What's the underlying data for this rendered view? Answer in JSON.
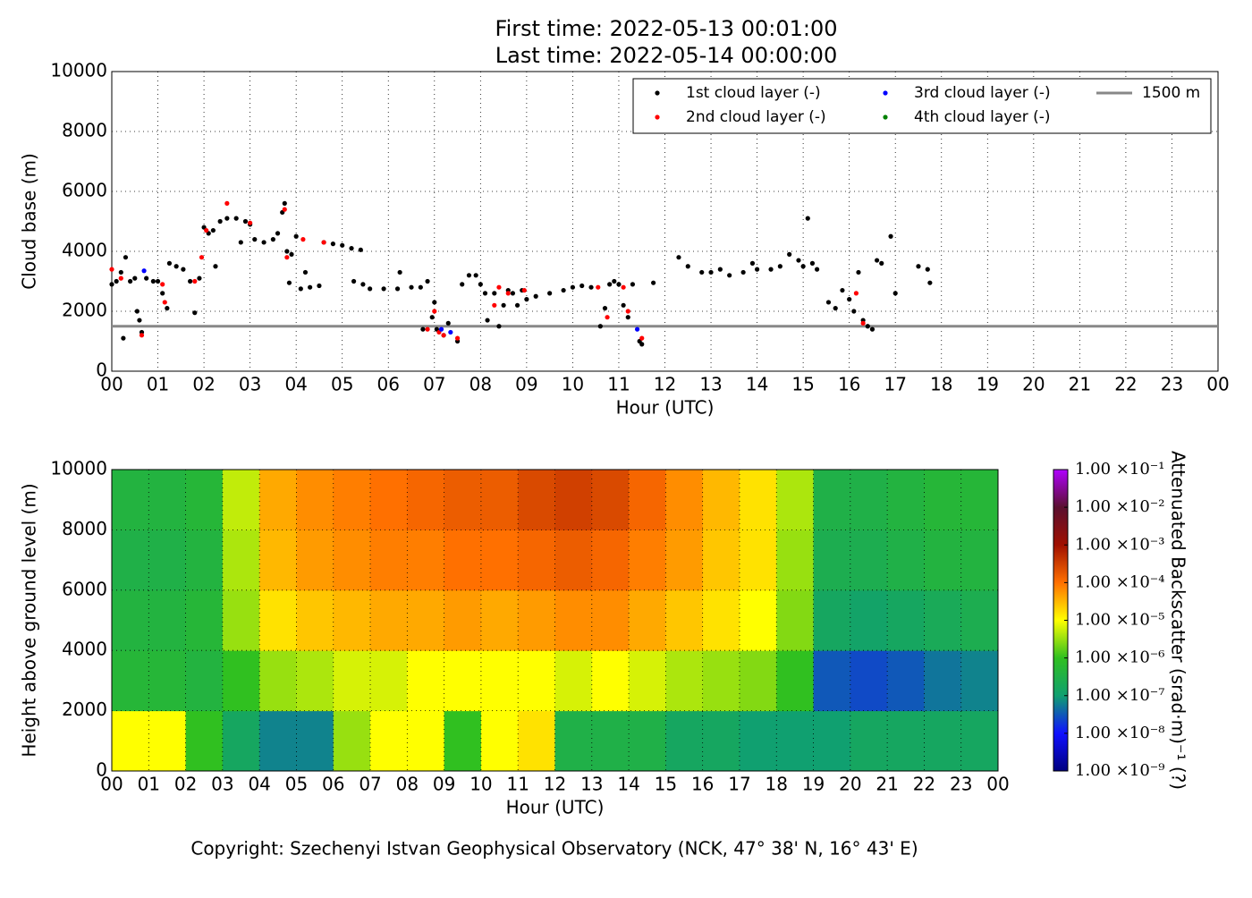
{
  "chart_data": [
    {
      "type": "scatter",
      "title": "First time: 2022-05-13 00:01:00",
      "subtitle": "Last time: 2022-05-14 00:00:00",
      "xlabel": "Hour (UTC)",
      "ylabel": "Cloud base (m)",
      "xlim": [
        0,
        24
      ],
      "ylim": [
        0,
        10000
      ],
      "xticks": [
        {
          "value": 0,
          "label": "00"
        },
        {
          "value": 1,
          "label": "01"
        },
        {
          "value": 2,
          "label": "02"
        },
        {
          "value": 3,
          "label": "03"
        },
        {
          "value": 4,
          "label": "04"
        },
        {
          "value": 5,
          "label": "05"
        },
        {
          "value": 6,
          "label": "06"
        },
        {
          "value": 7,
          "label": "07"
        },
        {
          "value": 8,
          "label": "08"
        },
        {
          "value": 9,
          "label": "09"
        },
        {
          "value": 10,
          "label": "10"
        },
        {
          "value": 11,
          "label": "11"
        },
        {
          "value": 12,
          "label": "12"
        },
        {
          "value": 13,
          "label": "13"
        },
        {
          "value": 14,
          "label": "14"
        },
        {
          "value": 15,
          "label": "15"
        },
        {
          "value": 16,
          "label": "16"
        },
        {
          "value": 17,
          "label": "17"
        },
        {
          "value": 18,
          "label": "18"
        },
        {
          "value": 19,
          "label": "19"
        },
        {
          "value": 20,
          "label": "20"
        },
        {
          "value": 21,
          "label": "21"
        },
        {
          "value": 22,
          "label": "22"
        },
        {
          "value": 23,
          "label": "23"
        },
        {
          "value": 24,
          "label": "00"
        }
      ],
      "yticks": [
        0,
        2000,
        4000,
        6000,
        8000,
        10000
      ],
      "grid": true,
      "series": [
        {
          "name": "1st cloud layer (-)",
          "color": "#000000",
          "x": [
            0.0,
            0.1,
            0.2,
            0.25,
            0.3,
            0.4,
            0.5,
            0.55,
            0.6,
            0.65,
            0.75,
            0.9,
            1.0,
            1.1,
            1.2,
            1.25,
            1.4,
            1.55,
            1.7,
            1.8,
            1.9,
            2.0,
            2.1,
            2.2,
            2.25,
            2.35,
            2.5,
            2.7,
            2.8,
            2.9,
            3.0,
            3.1,
            3.3,
            3.5,
            3.6,
            3.7,
            3.75,
            3.8,
            3.85,
            3.9,
            4.0,
            4.1,
            4.2,
            4.3,
            4.5,
            4.6,
            4.8,
            5.0,
            5.2,
            5.25,
            5.4,
            5.45,
            5.6,
            5.9,
            6.2,
            6.25,
            6.5,
            6.7,
            6.75,
            6.85,
            6.95,
            7.0,
            7.05,
            7.2,
            7.3,
            7.5,
            7.6,
            7.75,
            7.9,
            8.0,
            8.1,
            8.15,
            8.3,
            8.4,
            8.5,
            8.6,
            8.7,
            8.8,
            8.9,
            9.0,
            9.2,
            9.5,
            9.8,
            10.0,
            10.2,
            10.4,
            10.6,
            10.7,
            10.8,
            10.9,
            11.0,
            11.1,
            11.2,
            11.3,
            11.45,
            11.5,
            11.75,
            12.3,
            12.5,
            12.8,
            13.0,
            13.2,
            13.4,
            13.7,
            13.9,
            14.0,
            14.3,
            14.5,
            14.7,
            14.9,
            15.0,
            15.1,
            15.2,
            15.3,
            15.55,
            15.7,
            15.85,
            16.0,
            16.1,
            16.2,
            16.3,
            16.4,
            16.5,
            16.6,
            16.7,
            16.9,
            17.0,
            17.5,
            17.7,
            17.75
          ],
          "values": [
            2900,
            3000,
            3300,
            1100,
            3800,
            3000,
            3100,
            2000,
            1700,
            1300,
            3100,
            3000,
            3000,
            2600,
            2100,
            3600,
            3500,
            3400,
            3000,
            1950,
            3100,
            4800,
            4600,
            4700,
            3500,
            5000,
            5100,
            5100,
            4300,
            5000,
            4900,
            4400,
            4300,
            4400,
            4600,
            5300,
            5600,
            4000,
            2950,
            3900,
            4500,
            2750,
            3300,
            2800,
            2850,
            4300,
            4250,
            4200,
            4100,
            3000,
            4050,
            2900,
            2750,
            2750,
            2750,
            3300,
            2800,
            2800,
            1400,
            3000,
            1800,
            2300,
            1400,
            1200,
            1600,
            1000,
            2900,
            3200,
            3200,
            2900,
            2600,
            1700,
            2600,
            1500,
            2200,
            2700,
            2600,
            2200,
            2700,
            2400,
            2500,
            2600,
            2700,
            2800,
            2850,
            2800,
            1500,
            2100,
            2900,
            3000,
            2900,
            2200,
            1800,
            2900,
            1000,
            900,
            2950,
            3800,
            3500,
            3300,
            3300,
            3400,
            3200,
            3300,
            3600,
            3400,
            3400,
            3500,
            3900,
            3700,
            3500,
            5100,
            3600,
            3400,
            2300,
            2100,
            2700,
            2400,
            2000,
            3300,
            1700,
            1500,
            1400,
            3700,
            3600,
            4500,
            2600,
            3500,
            3400,
            2950
          ]
        },
        {
          "name": "2nd cloud layer (-)",
          "color": "#ff0000",
          "x": [
            0.0,
            0.2,
            0.65,
            1.1,
            1.15,
            1.8,
            1.95,
            2.05,
            2.5,
            3.0,
            3.75,
            3.8,
            4.15,
            4.6,
            6.85,
            7.0,
            7.1,
            7.2,
            7.5,
            8.3,
            8.4,
            8.6,
            8.95,
            10.55,
            10.75,
            11.1,
            11.2,
            11.5,
            16.15,
            16.3
          ],
          "values": [
            3400,
            3100,
            1200,
            2900,
            2300,
            3000,
            3800,
            4700,
            5600,
            4950,
            5400,
            3800,
            4400,
            4300,
            1400,
            2000,
            1300,
            1200,
            1100,
            2200,
            2800,
            2600,
            2700,
            2800,
            1800,
            2800,
            2000,
            1100,
            2600,
            1600
          ]
        },
        {
          "name": "3rd cloud layer (-)",
          "color": "#0000ff",
          "x": [
            0.7,
            7.15,
            7.35,
            11.4
          ],
          "values": [
            3350,
            1400,
            1300,
            1400
          ]
        },
        {
          "name": "4th cloud layer (-)",
          "color": "#008000",
          "x": [],
          "values": []
        }
      ],
      "reference_line": {
        "name": "1500 m",
        "value": 1500,
        "color": "#888888"
      }
    },
    {
      "type": "heatmap",
      "xlabel": "Hour (UTC)",
      "ylabel": "Height above ground level (m)",
      "xlim": [
        0,
        24
      ],
      "ylim": [
        0,
        10000
      ],
      "xticks": [
        {
          "value": 0,
          "label": "00"
        },
        {
          "value": 1,
          "label": "01"
        },
        {
          "value": 2,
          "label": "02"
        },
        {
          "value": 3,
          "label": "03"
        },
        {
          "value": 4,
          "label": "04"
        },
        {
          "value": 5,
          "label": "05"
        },
        {
          "value": 6,
          "label": "06"
        },
        {
          "value": 7,
          "label": "07"
        },
        {
          "value": 8,
          "label": "08"
        },
        {
          "value": 9,
          "label": "09"
        },
        {
          "value": 10,
          "label": "10"
        },
        {
          "value": 11,
          "label": "11"
        },
        {
          "value": 12,
          "label": "12"
        },
        {
          "value": 13,
          "label": "13"
        },
        {
          "value": 14,
          "label": "14"
        },
        {
          "value": 15,
          "label": "15"
        },
        {
          "value": 16,
          "label": "16"
        },
        {
          "value": 17,
          "label": "17"
        },
        {
          "value": 18,
          "label": "18"
        },
        {
          "value": 19,
          "label": "19"
        },
        {
          "value": 20,
          "label": "20"
        },
        {
          "value": 21,
          "label": "21"
        },
        {
          "value": 22,
          "label": "22"
        },
        {
          "value": 23,
          "label": "23"
        },
        {
          "value": 24,
          "label": "00"
        }
      ],
      "yticks": [
        0,
        2000,
        4000,
        6000,
        8000,
        10000
      ],
      "grid": true,
      "x_bins": [
        0,
        1,
        2,
        3,
        4,
        5,
        6,
        7,
        8,
        9,
        10,
        11,
        12,
        13,
        14,
        15,
        16,
        17,
        18,
        19,
        20,
        21,
        22,
        23,
        24
      ],
      "y_bins": [
        0,
        2000,
        4000,
        6000,
        8000,
        10000
      ],
      "z": [
        [
          -5,
          -5,
          -6,
          -6.8,
          -7.2,
          -7.2,
          -5.5,
          -5,
          -5,
          -6,
          -5,
          -4.8,
          -6.5,
          -6.5,
          -6.5,
          -6.8,
          -6.8,
          -7,
          -7,
          -7,
          -6.8,
          -6.8,
          -6.8,
          -6.8
        ],
        [
          -6.3,
          -6.3,
          -6.4,
          -6,
          -5.5,
          -5.4,
          -5.2,
          -5.2,
          -5,
          -5,
          -5,
          -5,
          -5.2,
          -5,
          -5.2,
          -5.4,
          -5.5,
          -5.6,
          -6,
          -7.5,
          -7.6,
          -7.5,
          -7.3,
          -7.2
        ],
        [
          -6.4,
          -6.4,
          -6.3,
          -5.5,
          -4.8,
          -4.6,
          -4.5,
          -4.4,
          -4.4,
          -4.3,
          -4.4,
          -4.3,
          -4.2,
          -4.2,
          -4.4,
          -4.6,
          -4.8,
          -5,
          -5.6,
          -6.8,
          -6.9,
          -6.8,
          -6.7,
          -6.6
        ],
        [
          -6.5,
          -6.5,
          -6.4,
          -5.4,
          -4.5,
          -4.3,
          -4.2,
          -4.1,
          -4.1,
          -4,
          -4,
          -3.9,
          -3.8,
          -3.9,
          -4.1,
          -4.3,
          -4.6,
          -4.8,
          -5.5,
          -6.6,
          -6.6,
          -6.5,
          -6.4,
          -6.4
        ],
        [
          -6.4,
          -6.4,
          -6.3,
          -5.3,
          -4.4,
          -4.2,
          -4.1,
          -4,
          -3.9,
          -3.8,
          -3.8,
          -3.6,
          -3.5,
          -3.6,
          -3.9,
          -4.2,
          -4.5,
          -4.8,
          -5.4,
          -6.5,
          -6.5,
          -6.4,
          -6.3,
          -6.3
        ]
      ],
      "colorbar": {
        "label": "Attenuated Backscatter (srad·m)⁻¹ (?)",
        "lim": [
          -9,
          -1
        ],
        "ticks": [
          {
            "value": -9,
            "label": "1.00 ×10⁻⁹"
          },
          {
            "value": -8,
            "label": "1.00 ×10⁻⁸"
          },
          {
            "value": -7,
            "label": "1.00 ×10⁻⁷"
          },
          {
            "value": -6,
            "label": "1.00 ×10⁻⁶"
          },
          {
            "value": -5,
            "label": "1.00 ×10⁻⁵"
          },
          {
            "value": -4,
            "label": "1.00 ×10⁻⁴"
          },
          {
            "value": -3,
            "label": "1.00 ×10⁻³"
          },
          {
            "value": -2,
            "label": "1.00 ×10⁻²"
          },
          {
            "value": -1,
            "label": "1.00 ×10⁻¹"
          }
        ],
        "colors": [
          "#00007f",
          "#1010ff",
          "#10a070",
          "#30c020",
          "#ffff00",
          "#ff7000",
          "#a01000",
          "#5a1030",
          "#b000ff"
        ]
      },
      "footer": "Copyright: Szechenyi Istvan Geophysical Observatory (NCK, 47° 38' N, 16° 43' E)"
    }
  ]
}
